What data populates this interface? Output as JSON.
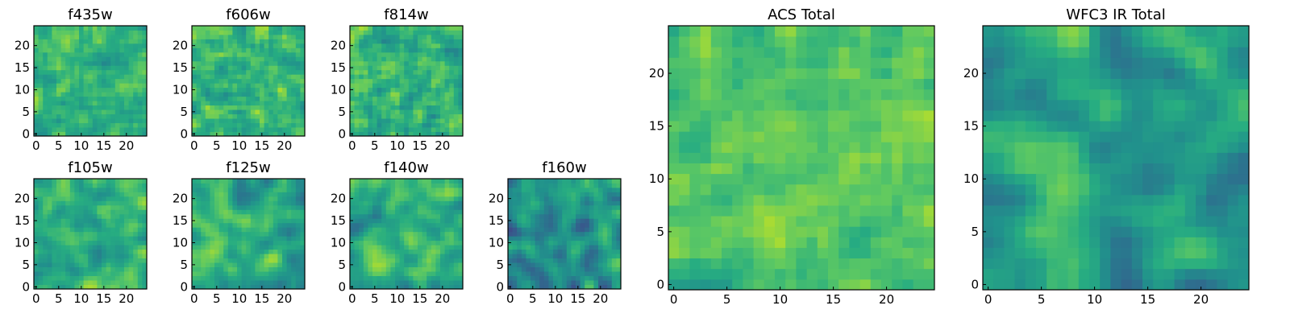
{
  "figure": {
    "background": "#ffffff",
    "colormap": "viridis"
  },
  "chart_data": [
    {
      "type": "heatmap",
      "title": "f435w",
      "grid": [
        25,
        25
      ],
      "xticks": [
        0,
        5,
        10,
        15,
        20
      ],
      "yticks": [
        0,
        5,
        10,
        15,
        20
      ],
      "xlim": [
        0,
        24
      ],
      "ylim": [
        0,
        24
      ],
      "smoothness": 0.15,
      "center": 0.66,
      "spread": 0.18,
      "seed": 11
    },
    {
      "type": "heatmap",
      "title": "f606w",
      "grid": [
        25,
        25
      ],
      "xticks": [
        0,
        5,
        10,
        15,
        20
      ],
      "yticks": [
        0,
        5,
        10,
        15,
        20
      ],
      "xlim": [
        0,
        24
      ],
      "ylim": [
        0,
        24
      ],
      "smoothness": 0.15,
      "center": 0.68,
      "spread": 0.18,
      "seed": 23
    },
    {
      "type": "heatmap",
      "title": "f814w",
      "grid": [
        25,
        25
      ],
      "xticks": [
        0,
        5,
        10,
        15,
        20
      ],
      "yticks": [
        0,
        5,
        10,
        15,
        20
      ],
      "xlim": [
        0,
        24
      ],
      "ylim": [
        0,
        24
      ],
      "smoothness": 0.15,
      "center": 0.66,
      "spread": 0.2,
      "seed": 37
    },
    {
      "type": "heatmap",
      "title": "f105w",
      "grid": [
        25,
        25
      ],
      "xticks": [
        0,
        5,
        10,
        15,
        20
      ],
      "yticks": [
        0,
        5,
        10,
        15,
        20
      ],
      "xlim": [
        0,
        24
      ],
      "ylim": [
        0,
        24
      ],
      "smoothness": 0.55,
      "center": 0.66,
      "spread": 0.2,
      "seed": 41
    },
    {
      "type": "heatmap",
      "title": "f125w",
      "grid": [
        25,
        25
      ],
      "xticks": [
        0,
        5,
        10,
        15,
        20
      ],
      "yticks": [
        0,
        5,
        10,
        15,
        20
      ],
      "xlim": [
        0,
        24
      ],
      "ylim": [
        0,
        24
      ],
      "smoothness": 0.6,
      "center": 0.62,
      "spread": 0.22,
      "seed": 53
    },
    {
      "type": "heatmap",
      "title": "f140w",
      "grid": [
        25,
        25
      ],
      "xticks": [
        0,
        5,
        10,
        15,
        20
      ],
      "yticks": [
        0,
        5,
        10,
        15,
        20
      ],
      "xlim": [
        0,
        24
      ],
      "ylim": [
        0,
        24
      ],
      "smoothness": 0.6,
      "center": 0.62,
      "spread": 0.22,
      "seed": 67
    },
    {
      "type": "heatmap",
      "title": "f160w",
      "grid": [
        25,
        25
      ],
      "xticks": [
        0,
        5,
        10,
        15,
        20
      ],
      "yticks": [
        0,
        5,
        10,
        15,
        20
      ],
      "xlim": [
        0,
        24
      ],
      "ylim": [
        0,
        24
      ],
      "smoothness": 0.55,
      "center": 0.5,
      "spread": 0.24,
      "seed": 79
    },
    {
      "type": "heatmap",
      "title": "ACS Total",
      "grid": [
        25,
        25
      ],
      "xticks": [
        0,
        5,
        10,
        15,
        20
      ],
      "yticks": [
        0,
        5,
        10,
        15,
        20
      ],
      "xlim": [
        0,
        24
      ],
      "ylim": [
        0,
        24
      ],
      "smoothness": 0.25,
      "center": 0.7,
      "spread": 0.16,
      "seed": 97
    },
    {
      "type": "heatmap",
      "title": "WFC3 IR Total",
      "grid": [
        25,
        25
      ],
      "xticks": [
        0,
        5,
        10,
        15,
        20
      ],
      "yticks": [
        0,
        5,
        10,
        15,
        20
      ],
      "xlim": [
        0,
        24
      ],
      "ylim": [
        0,
        24
      ],
      "smoothness": 0.6,
      "center": 0.58,
      "spread": 0.22,
      "seed": 101
    }
  ]
}
